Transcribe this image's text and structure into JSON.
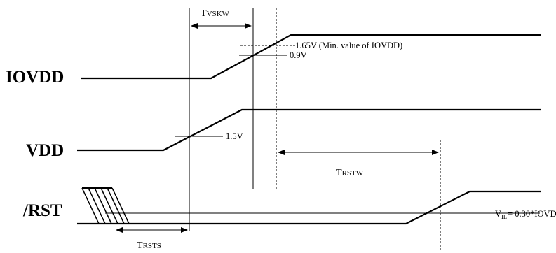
{
  "signals": {
    "iovdd": "IOVDD",
    "vdd": "VDD",
    "rst": "/RST"
  },
  "timings": {
    "tvskw": {
      "main": "T",
      "sub": "VSKW"
    },
    "trstw": {
      "main": "T",
      "sub": "RSTW"
    },
    "trsts": {
      "main": "T",
      "sub": "RSTS"
    }
  },
  "annotations": {
    "v165": "1.65V (Min. value of IOVDD)",
    "v09": "0.9V",
    "v15": "1.5V",
    "vil_prefix": "V",
    "vil_sub": "IL",
    "vil_value": "= 0.30*IOVDD"
  }
}
